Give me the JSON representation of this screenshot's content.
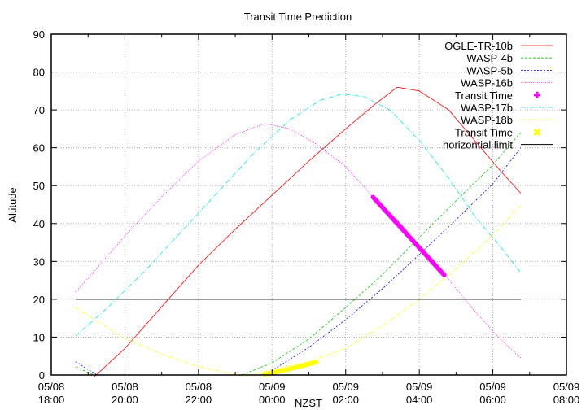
{
  "chart_data": {
    "type": "line",
    "title": "Transit Time Prediction",
    "xlabel": "NZST",
    "ylabel": "Altitude",
    "xlim_hours": [
      0,
      14
    ],
    "ylim": [
      0,
      90
    ],
    "x_hour_origin": "05/08 18:00",
    "x_ticks": [
      {
        "h": 0,
        "date": "05/08",
        "time": "18:00"
      },
      {
        "h": 2,
        "date": "05/08",
        "time": "20:00"
      },
      {
        "h": 4,
        "date": "05/08",
        "time": "22:00"
      },
      {
        "h": 6,
        "date": "05/09",
        "time": "00:00"
      },
      {
        "h": 8,
        "date": "05/09",
        "time": "02:00"
      },
      {
        "h": 10,
        "date": "05/09",
        "time": "04:00"
      },
      {
        "h": 12,
        "date": "05/09",
        "time": "06:00"
      },
      {
        "h": 14,
        "date": "05/09",
        "time": "08:00"
      }
    ],
    "y_ticks": [
      0,
      10,
      20,
      30,
      40,
      50,
      60,
      70,
      80,
      90
    ],
    "grid": true,
    "legend_position": "top-right",
    "series": [
      {
        "name": "OGLE-TR-10b",
        "color": "#ff0000",
        "dash": "",
        "width": 0.8,
        "points": [
          [
            0.66,
            -4
          ],
          [
            1.22,
            0
          ],
          [
            2,
            7
          ],
          [
            3,
            18
          ],
          [
            4,
            29
          ],
          [
            5,
            38.5
          ],
          [
            6,
            47.5
          ],
          [
            7,
            56.5
          ],
          [
            8,
            65
          ],
          [
            8.8,
            71.5
          ],
          [
            9.4,
            76
          ],
          [
            10,
            75
          ],
          [
            10.8,
            70
          ],
          [
            11.5,
            62
          ],
          [
            12.2,
            54
          ],
          [
            12.76,
            48
          ]
        ]
      },
      {
        "name": "WASP-4b",
        "color": "#00cc00",
        "dash": "3,2",
        "width": 0.8,
        "points": [
          [
            0.66,
            2.2
          ],
          [
            1.15,
            0
          ]
        ],
        "points2": [
          [
            5.18,
            0
          ],
          [
            6,
            3.2
          ],
          [
            7,
            9.5
          ],
          [
            8,
            17.8
          ],
          [
            9,
            26.5
          ],
          [
            10,
            36.3
          ],
          [
            11,
            46
          ],
          [
            12,
            55.5
          ],
          [
            12.76,
            64
          ]
        ]
      },
      {
        "name": "WASP-5b",
        "color": "#0000ff",
        "dash": "2,2",
        "width": 0.8,
        "points": [
          [
            0.66,
            3.5
          ],
          [
            1.25,
            0
          ]
        ],
        "points2": [
          [
            5.65,
            0
          ],
          [
            6,
            1.2
          ],
          [
            7,
            7.3
          ],
          [
            8,
            14.6
          ],
          [
            9,
            22.8
          ],
          [
            10,
            31.8
          ],
          [
            11,
            41
          ],
          [
            12,
            50.5
          ],
          [
            12.76,
            60
          ]
        ]
      },
      {
        "name": "WASP-16b",
        "color": "#ff00ff",
        "dash": "1,1.5",
        "width": 0.8,
        "points": [
          [
            0.66,
            22
          ],
          [
            1,
            25.5
          ],
          [
            2,
            36.7
          ],
          [
            3,
            47
          ],
          [
            4,
            56.5
          ],
          [
            5,
            63.5
          ],
          [
            5.8,
            66.4
          ],
          [
            6.5,
            65
          ],
          [
            7.2,
            61
          ],
          [
            8,
            55
          ],
          [
            8.75,
            47
          ],
          [
            9.5,
            40
          ],
          [
            10,
            34
          ],
          [
            10.7,
            26.4
          ],
          [
            11.5,
            17
          ],
          [
            12.2,
            9.5
          ],
          [
            12.76,
            4.5
          ]
        ]
      },
      {
        "name": "Transit Time",
        "color": "#ff00ff",
        "marker": "plus",
        "width": 5.5,
        "points": [
          [
            8.74,
            47
          ],
          [
            10.68,
            26.4
          ]
        ]
      },
      {
        "name": "WASP-17b",
        "color": "#00e5e5",
        "dash": "6,2,1,2",
        "width": 0.8,
        "points": [
          [
            0.66,
            10.3
          ],
          [
            1.5,
            17.5
          ],
          [
            2.5,
            27
          ],
          [
            3.5,
            37.5
          ],
          [
            4.5,
            48
          ],
          [
            5.5,
            58.5
          ],
          [
            6.5,
            67.5
          ],
          [
            7.3,
            72.5
          ],
          [
            7.9,
            74.2
          ],
          [
            8.5,
            73.5
          ],
          [
            9.2,
            70
          ],
          [
            10,
            62
          ],
          [
            10.8,
            52
          ],
          [
            11.5,
            42
          ],
          [
            12.2,
            34
          ],
          [
            12.76,
            27
          ]
        ]
      },
      {
        "name": "WASP-18b",
        "color": "#ffff00",
        "dash": "5,2,1,2",
        "width": 0.8,
        "points": [
          [
            0.66,
            17.8
          ],
          [
            1.2,
            14.5
          ],
          [
            2,
            9.7
          ],
          [
            3,
            5.5
          ],
          [
            4,
            2.3
          ],
          [
            4.8,
            0.5
          ],
          [
            5,
            0
          ],
          [
            5.3,
            -0.3
          ],
          [
            6,
            1.5
          ],
          [
            7,
            3.5
          ],
          [
            8,
            7
          ],
          [
            9,
            13
          ],
          [
            10,
            20
          ],
          [
            11,
            28
          ],
          [
            12,
            37
          ],
          [
            12.76,
            44.7
          ]
        ]
      },
      {
        "name": "Transit Time",
        "color": "#ffff00",
        "marker": "cross",
        "width": 5.5,
        "points": [
          [
            5.8,
            0.2
          ],
          [
            6.3,
            1.2
          ],
          [
            6.9,
            2.6
          ],
          [
            7.2,
            3.4
          ]
        ]
      },
      {
        "name": "horizontial limit",
        "color": "#000000",
        "dash": "",
        "width": 1,
        "points": [
          [
            0.66,
            20
          ],
          [
            12.76,
            20
          ]
        ]
      }
    ]
  },
  "legend": {
    "items": [
      {
        "label": "OGLE-TR-10b",
        "color": "#ff0000",
        "kind": "line",
        "dash": ""
      },
      {
        "label": "WASP-4b",
        "color": "#00cc00",
        "kind": "line",
        "dash": "3,2"
      },
      {
        "label": "WASP-5b",
        "color": "#0000ff",
        "kind": "line",
        "dash": "2,2"
      },
      {
        "label": "WASP-16b",
        "color": "#ff00ff",
        "kind": "line",
        "dash": "1,1.5"
      },
      {
        "label": "Transit Time",
        "color": "#ff00ff",
        "kind": "plus",
        "dash": ""
      },
      {
        "label": "WASP-17b",
        "color": "#00e5e5",
        "kind": "line",
        "dash": "6,2,1,2"
      },
      {
        "label": "WASP-18b",
        "color": "#ffff00",
        "kind": "line",
        "dash": "5,2,1,2"
      },
      {
        "label": "Transit Time",
        "color": "#ffff00",
        "kind": "cross",
        "dash": ""
      },
      {
        "label": "horizontial limit",
        "color": "#000000",
        "kind": "line",
        "dash": ""
      }
    ]
  }
}
